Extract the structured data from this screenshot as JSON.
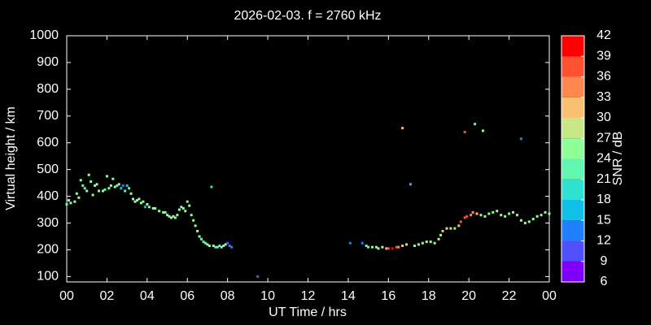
{
  "chart_data": {
    "type": "scatter",
    "title": "2026-02-03. f = 2760 kHz",
    "x_label": "UT Time / hrs",
    "y_label": "Virtual height / km",
    "xlim": [
      0,
      24
    ],
    "xticks": [
      {
        "value": 0,
        "label": "00"
      },
      {
        "value": 2,
        "label": "02"
      },
      {
        "value": 4,
        "label": "04"
      },
      {
        "value": 6,
        "label": "06"
      },
      {
        "value": 8,
        "label": "08"
      },
      10,
      12,
      14,
      16,
      18,
      20,
      22,
      {
        "value": 24,
        "label": "00"
      }
    ],
    "ylim": [
      80,
      1000
    ],
    "yticks": [
      100,
      200,
      300,
      400,
      500,
      600,
      700,
      800,
      900,
      1000
    ],
    "x": [
      0,
      0.1,
      0.2,
      0.4,
      0.5,
      0.6,
      0.7,
      0.8,
      0.9,
      1.0,
      1.1,
      1.2,
      1.3,
      1.4,
      1.5,
      1.6,
      1.8,
      1.9,
      2.0,
      2.1,
      2.2,
      2.3,
      2.4,
      2.5,
      2.6,
      2.7,
      2.8,
      2.9,
      3.0,
      3.1,
      3.2,
      3.3,
      3.4,
      3.5,
      3.6,
      3.7,
      3.8,
      3.9,
      4.0,
      4.1,
      4.3,
      4.4,
      4.6,
      4.8,
      4.9,
      5.0,
      5.1,
      5.2,
      5.3,
      5.4,
      5.5,
      5.6,
      5.7,
      5.8,
      5.9,
      6.0,
      6.1,
      6.2,
      6.3,
      6.4,
      6.5,
      6.6,
      6.7,
      6.8,
      6.9,
      7.0,
      7.1,
      7.2,
      7.3,
      7.4,
      7.5,
      7.6,
      7.7,
      7.8,
      7.9,
      8.0,
      8.1,
      8.2,
      9.5,
      14.1,
      14.7,
      14.9,
      15.0,
      15.2,
      15.4,
      15.5,
      15.7,
      15.9,
      16.0,
      16.2,
      16.4,
      16.5,
      16.7,
      16.7,
      16.9,
      17.1,
      17.3,
      17.5,
      17.7,
      17.9,
      18.1,
      18.3,
      18.5,
      18.6,
      18.7,
      18.9,
      19.1,
      19.3,
      19.5,
      19.6,
      19.8,
      19.8,
      19.9,
      20.1,
      20.2,
      20.3,
      20.4,
      20.6,
      20.7,
      20.8,
      21.0,
      21.2,
      21.4,
      21.6,
      21.8,
      22.0,
      22.2,
      22.4,
      22.6,
      22.6,
      22.8,
      23.0,
      23.2,
      23.4,
      23.6,
      23.8,
      24
    ],
    "values": [
      370,
      385,
      375,
      380,
      410,
      395,
      460,
      440,
      430,
      420,
      480,
      455,
      405,
      440,
      445,
      420,
      420,
      425,
      475,
      430,
      440,
      465,
      435,
      440,
      445,
      430,
      440,
      420,
      440,
      430,
      410,
      390,
      380,
      385,
      390,
      375,
      380,
      360,
      370,
      360,
      355,
      355,
      345,
      340,
      340,
      330,
      325,
      320,
      325,
      320,
      330,
      350,
      360,
      355,
      345,
      380,
      365,
      330,
      310,
      290,
      270,
      250,
      240,
      230,
      225,
      220,
      215,
      435,
      215,
      210,
      210,
      215,
      210,
      215,
      220,
      225,
      215,
      210,
      100,
      225,
      225,
      215,
      210,
      210,
      210,
      205,
      210,
      205,
      205,
      205,
      210,
      210,
      215,
      655,
      220,
      445,
      215,
      220,
      225,
      230,
      230,
      225,
      240,
      255,
      270,
      280,
      280,
      280,
      290,
      305,
      320,
      640,
      325,
      330,
      340,
      670,
      335,
      330,
      645,
      325,
      335,
      340,
      345,
      330,
      325,
      335,
      340,
      330,
      310,
      615,
      300,
      305,
      315,
      325,
      330,
      340,
      335
    ],
    "snr": [
      22,
      25,
      25,
      25,
      25,
      25,
      25,
      22,
      22,
      25,
      25,
      25,
      25,
      25,
      25,
      25,
      25,
      22,
      25,
      25,
      25,
      25,
      25,
      22,
      25,
      16,
      13,
      22,
      16,
      22,
      25,
      25,
      25,
      25,
      25,
      25,
      25,
      16,
      25,
      25,
      25,
      25,
      25,
      25,
      25,
      25,
      25,
      25,
      25,
      25,
      25,
      25,
      25,
      25,
      25,
      22,
      25,
      25,
      25,
      25,
      25,
      25,
      22,
      22,
      22,
      25,
      25,
      19,
      25,
      22,
      22,
      22,
      25,
      25,
      25,
      10,
      13,
      13,
      10,
      13,
      13,
      22,
      22,
      25,
      25,
      25,
      28,
      31,
      37,
      40,
      37,
      34,
      31,
      31,
      28,
      16,
      25,
      25,
      25,
      28,
      25,
      25,
      25,
      28,
      31,
      28,
      28,
      28,
      31,
      37,
      37,
      37,
      37,
      34,
      34,
      22,
      31,
      25,
      25,
      28,
      25,
      25,
      25,
      25,
      25,
      25,
      28,
      25,
      25,
      13,
      25,
      25,
      25,
      25,
      25,
      25,
      25
    ],
    "colorbar": {
      "label": "SNR / dB",
      "ticks": [
        6,
        9,
        12,
        15,
        18,
        21,
        24,
        27,
        30,
        33,
        36,
        39,
        42
      ],
      "colors": [
        "#8000ff",
        "#5050ff",
        "#2080ff",
        "#10c0e8",
        "#30e0d0",
        "#60f8b0",
        "#90ff98",
        "#c8e888",
        "#f8c070",
        "#ff8850",
        "#ff5030",
        "#ff0000"
      ]
    }
  }
}
